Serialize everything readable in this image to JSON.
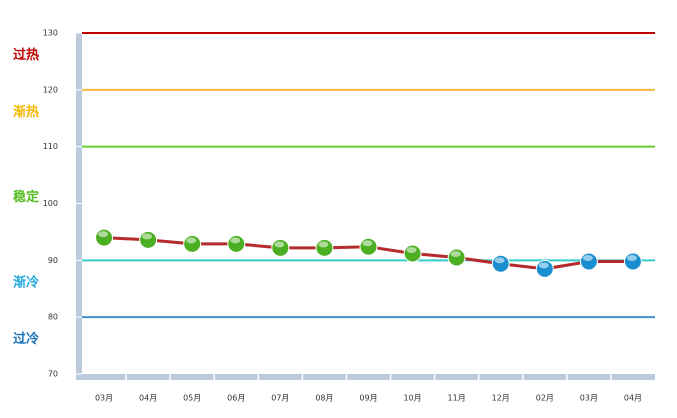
{
  "chart_data": {
    "type": "line",
    "categories": [
      "03月",
      "04月",
      "05月",
      "06月",
      "07月",
      "08月",
      "09月",
      "10月",
      "11月",
      "12月",
      "02月",
      "03月",
      "04月"
    ],
    "series": [
      {
        "color": "#b52a2a",
        "values": [
          94.0,
          93.6,
          92.9,
          92.9,
          92.2,
          92.2,
          92.4,
          91.2,
          90.5,
          89.4,
          88.5,
          89.8,
          89.8
        ],
        "marker_colors": [
          "#4caf22",
          "#4caf22",
          "#4caf22",
          "#4caf22",
          "#4caf22",
          "#4caf22",
          "#4caf22",
          "#4caf22",
          "#4caf22",
          "#1a8fd0",
          "#1a8fd0",
          "#1a8fd0",
          "#1a8fd0"
        ]
      }
    ],
    "ylim": [
      70,
      130
    ],
    "yticks": [
      70,
      80,
      90,
      100,
      110,
      120,
      130
    ],
    "reference_lines": [
      {
        "value": 130,
        "color": "#c00000"
      },
      {
        "value": 120,
        "color": "#f5b942"
      },
      {
        "value": 110,
        "color": "#66cc33"
      },
      {
        "value": 90,
        "color": "#33cccc"
      },
      {
        "value": 80,
        "color": "#3f8fd0"
      }
    ],
    "zones": [
      {
        "label": "过热",
        "color": "#c00000"
      },
      {
        "label": "渐热",
        "color": "#f5b800"
      },
      {
        "label": "稳定",
        "color": "#55bb22"
      },
      {
        "label": "渐冷",
        "color": "#22aadd"
      },
      {
        "label": "过冷",
        "color": "#1a73b8"
      }
    ]
  }
}
